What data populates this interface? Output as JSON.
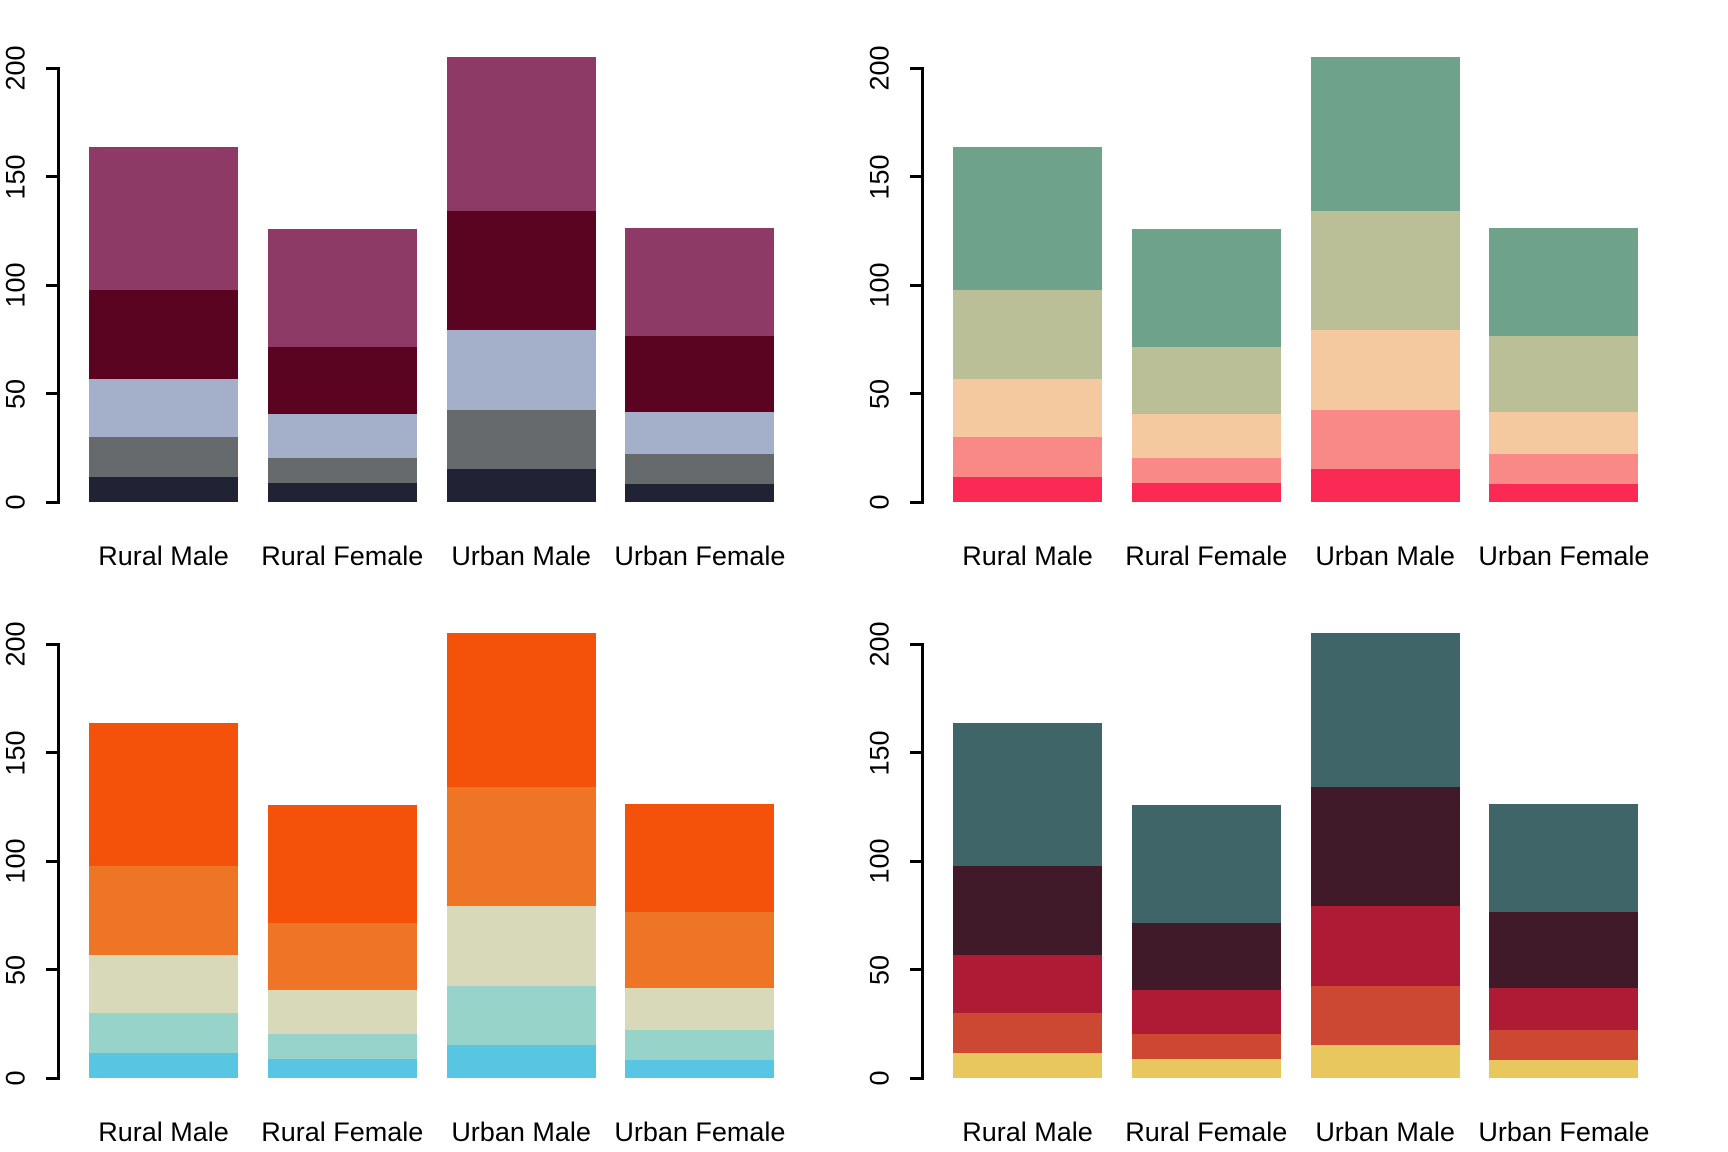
{
  "figure": {
    "background": "#ffffff",
    "text_color": "#000000",
    "axis_color": "#000000",
    "layout": "2x2-grid-of-stacked-barplots"
  },
  "chart_data": [
    {
      "type": "bar",
      "stacked": true,
      "position": "top-left",
      "title": "",
      "xlabel": "",
      "ylabel": "",
      "categories": [
        "Rural Male",
        "Rural Female",
        "Urban Male",
        "Urban Female"
      ],
      "y_ticks": [
        0,
        50,
        100,
        150,
        200
      ],
      "y_tick_labels": [
        "0",
        "50",
        "100",
        "150",
        "200"
      ],
      "ylim": [
        0,
        200
      ],
      "grid": false,
      "legend": false,
      "series": [
        {
          "name": "segment-1",
          "color": "#212233",
          "values": [
            11.7,
            8.7,
            15.4,
            8.4
          ]
        },
        {
          "name": "segment-2",
          "color": "#666A6D",
          "values": [
            18.1,
            11.7,
            26.9,
            13.6
          ]
        },
        {
          "name": "segment-3",
          "color": "#A4AFC9",
          "values": [
            26.9,
            20.3,
            37.0,
            19.3
          ]
        },
        {
          "name": "segment-4",
          "color": "#5A0422",
          "values": [
            41.0,
            30.9,
            54.6,
            35.1
          ]
        },
        {
          "name": "segment-5",
          "color": "#8E3A66",
          "values": [
            66.0,
            54.3,
            71.1,
            50.0
          ]
        }
      ]
    },
    {
      "type": "bar",
      "stacked": true,
      "position": "top-right",
      "title": "",
      "xlabel": "",
      "ylabel": "",
      "categories": [
        "Rural Male",
        "Rural Female",
        "Urban Male",
        "Urban Female"
      ],
      "y_ticks": [
        0,
        50,
        100,
        150,
        200
      ],
      "y_tick_labels": [
        "0",
        "50",
        "100",
        "150",
        "200"
      ],
      "ylim": [
        0,
        200
      ],
      "grid": false,
      "legend": false,
      "series": [
        {
          "name": "segment-1",
          "color": "#FA2A55",
          "values": [
            11.7,
            8.7,
            15.4,
            8.4
          ]
        },
        {
          "name": "segment-2",
          "color": "#F88986",
          "values": [
            18.1,
            11.7,
            26.9,
            13.6
          ]
        },
        {
          "name": "segment-3",
          "color": "#F5C9A0",
          "values": [
            26.9,
            20.3,
            37.0,
            19.3
          ]
        },
        {
          "name": "segment-4",
          "color": "#BABF97",
          "values": [
            41.0,
            30.9,
            54.6,
            35.1
          ]
        },
        {
          "name": "segment-5",
          "color": "#6FA28B",
          "values": [
            66.0,
            54.3,
            71.1,
            50.0
          ]
        }
      ]
    },
    {
      "type": "bar",
      "stacked": true,
      "position": "bottom-left",
      "title": "",
      "xlabel": "",
      "ylabel": "",
      "categories": [
        "Rural Male",
        "Rural Female",
        "Urban Male",
        "Urban Female"
      ],
      "y_ticks": [
        0,
        50,
        100,
        150,
        200
      ],
      "y_tick_labels": [
        "0",
        "50",
        "100",
        "150",
        "200"
      ],
      "ylim": [
        0,
        200
      ],
      "grid": false,
      "legend": false,
      "series": [
        {
          "name": "segment-1",
          "color": "#58C6E3",
          "values": [
            11.7,
            8.7,
            15.4,
            8.4
          ]
        },
        {
          "name": "segment-2",
          "color": "#98D3CA",
          "values": [
            18.1,
            11.7,
            26.9,
            13.6
          ]
        },
        {
          "name": "segment-3",
          "color": "#D7D9B9",
          "values": [
            26.9,
            20.3,
            37.0,
            19.3
          ]
        },
        {
          "name": "segment-4",
          "color": "#EE7426",
          "values": [
            41.0,
            30.9,
            54.6,
            35.1
          ]
        },
        {
          "name": "segment-5",
          "color": "#F4520B",
          "values": [
            66.0,
            54.3,
            71.1,
            50.0
          ]
        }
      ]
    },
    {
      "type": "bar",
      "stacked": true,
      "position": "bottom-right",
      "title": "",
      "xlabel": "",
      "ylabel": "",
      "categories": [
        "Rural Male",
        "Rural Female",
        "Urban Male",
        "Urban Female"
      ],
      "y_ticks": [
        0,
        50,
        100,
        150,
        200
      ],
      "y_tick_labels": [
        "0",
        "50",
        "100",
        "150",
        "200"
      ],
      "ylim": [
        0,
        200
      ],
      "grid": false,
      "legend": false,
      "series": [
        {
          "name": "segment-1",
          "color": "#E8C75F",
          "values": [
            11.7,
            8.7,
            15.4,
            8.4
          ]
        },
        {
          "name": "segment-2",
          "color": "#CC4832",
          "values": [
            18.1,
            11.7,
            26.9,
            13.6
          ]
        },
        {
          "name": "segment-3",
          "color": "#AF1A35",
          "values": [
            26.9,
            20.3,
            37.0,
            19.3
          ]
        },
        {
          "name": "segment-4",
          "color": "#411A2A",
          "values": [
            41.0,
            30.9,
            54.6,
            35.1
          ]
        },
        {
          "name": "segment-5",
          "color": "#406568",
          "values": [
            66.0,
            54.3,
            71.1,
            50.0
          ]
        }
      ]
    }
  ]
}
